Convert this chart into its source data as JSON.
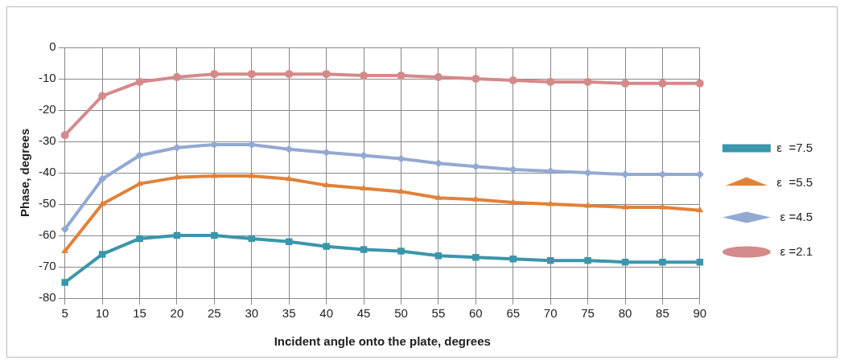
{
  "chart_data": {
    "type": "line",
    "xlabel": "Incident angle onto the plate, degrees",
    "ylabel": "Phase, degrees",
    "categories": [
      "5",
      "10",
      "15",
      "20",
      "25",
      "30",
      "35",
      "40",
      "45",
      "50",
      "55",
      "60",
      "65",
      "70",
      "75",
      "80",
      "85",
      "90"
    ],
    "ylim": [
      -80,
      0
    ],
    "yticks": [
      -80,
      -70,
      -60,
      -50,
      -40,
      -30,
      -20,
      -10,
      0
    ],
    "grid": true,
    "legend": "right",
    "series": [
      {
        "name": "ε  =7.5",
        "color": "#3a96aa",
        "marker": "square",
        "values": [
          -75,
          -66,
          -61,
          -60,
          -60,
          -61,
          -62,
          -63.5,
          -64.5,
          -65,
          -66.5,
          -67,
          -67.5,
          -68,
          -68,
          -68.5,
          -68.5,
          -68.5
        ]
      },
      {
        "name": "ε  =5.5",
        "color": "#e0823a",
        "marker": "triangle",
        "values": [
          -65,
          -50,
          -43.5,
          -41.5,
          -41,
          -41,
          -42,
          -44,
          -45,
          -46,
          -48,
          -48.5,
          -49.5,
          -50,
          -50.5,
          -51,
          -51,
          -52
        ]
      },
      {
        "name": " ε =4.5",
        "color": "#93a9d2",
        "marker": "diamond",
        "values": [
          -58,
          -42,
          -34.5,
          -32,
          -31,
          -31,
          -32.5,
          -33.5,
          -34.5,
          -35.5,
          -37,
          -38,
          -39,
          -39.5,
          -40,
          -40.5,
          -40.5,
          -40.5
        ]
      },
      {
        "name": " ε =2.1",
        "color": "#d48a8a",
        "marker": "circle",
        "values": [
          -28,
          -15.5,
          -11,
          -9.5,
          -8.5,
          -8.5,
          -8.5,
          -8.5,
          -9,
          -9,
          -9.5,
          -10,
          -10.5,
          -11,
          -11,
          -11.5,
          -11.5,
          -11.5
        ]
      }
    ]
  }
}
